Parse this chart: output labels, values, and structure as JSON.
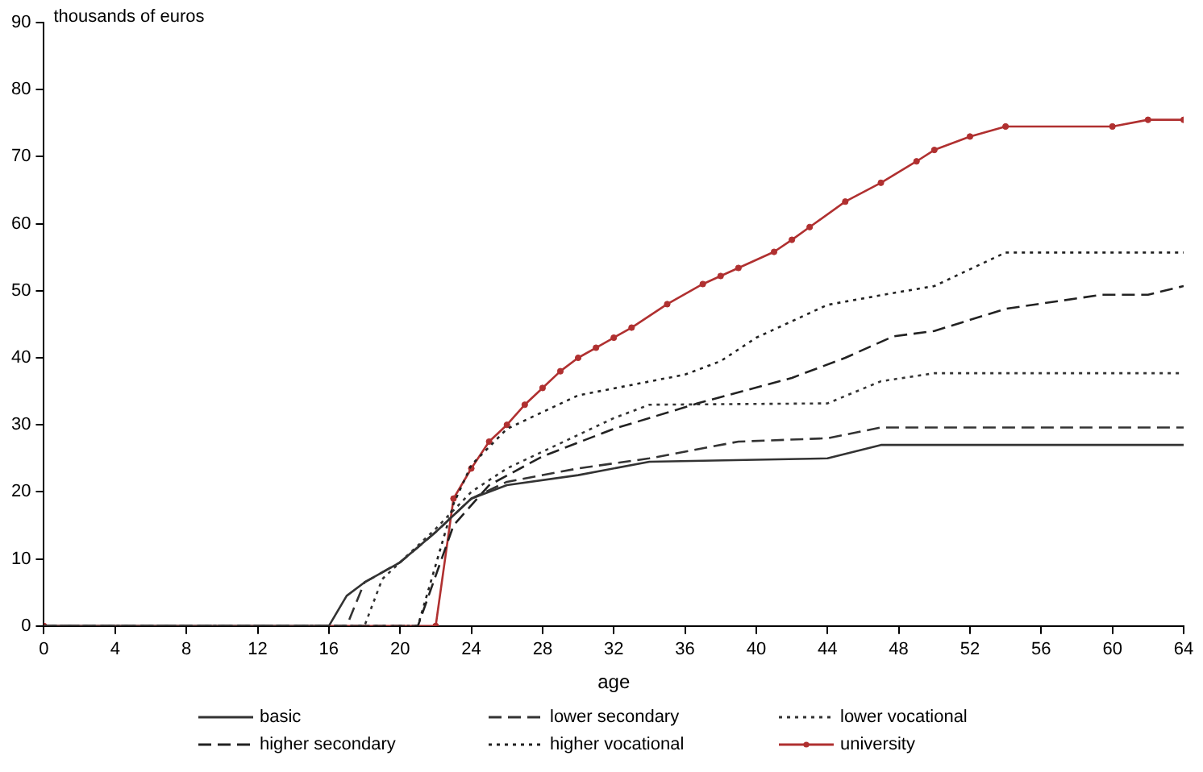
{
  "chart_data": {
    "type": "line",
    "ylabel": "thousands of euros",
    "xlabel": "age",
    "xlim": [
      0,
      64
    ],
    "xticks": [
      0,
      4,
      8,
      12,
      16,
      20,
      24,
      28,
      32,
      36,
      40,
      44,
      48,
      52,
      56,
      60,
      64
    ],
    "ylim": [
      0,
      90
    ],
    "yticks": [
      0,
      10,
      20,
      30,
      40,
      50,
      60,
      70,
      80,
      90
    ],
    "grid": false,
    "legend": "bottom",
    "marker": "none",
    "series": [
      {
        "name": "basic",
        "color": "#333333",
        "line_style": "solid",
        "x": [
          0,
          16,
          17,
          18,
          20,
          22,
          24,
          26,
          30,
          34,
          44,
          47,
          64
        ],
        "values": [
          0,
          0,
          4.5,
          6.5,
          9.5,
          14,
          19,
          21,
          22.5,
          24.5,
          25,
          27,
          27
        ]
      },
      {
        "name": "lower secondary",
        "color": "#333333",
        "line_style": "dashed",
        "x": [
          0,
          17,
          18,
          20,
          22,
          24,
          26,
          30,
          34,
          39,
          44,
          47,
          64
        ],
        "values": [
          0,
          0,
          6.5,
          9.5,
          14,
          19,
          21.5,
          23.5,
          25,
          27.5,
          28,
          29.6,
          29.6
        ]
      },
      {
        "name": "lower vocational",
        "color": "#333333",
        "line_style": "dotted",
        "x": [
          0,
          18,
          19,
          20,
          22,
          24,
          26,
          28,
          30,
          32,
          34,
          44,
          47,
          50,
          64
        ],
        "values": [
          0,
          0,
          7,
          9.5,
          14.5,
          20,
          23.5,
          26,
          28.5,
          31,
          33,
          33.2,
          36.5,
          37.7,
          37.7
        ]
      },
      {
        "name": "higher secondary",
        "color": "#222222",
        "line_style": "dashed",
        "x": [
          0,
          21,
          23,
          25,
          28,
          32,
          36.7,
          42,
          45,
          47.7,
          50,
          54,
          59.4,
          62,
          64
        ],
        "values": [
          0,
          0,
          15,
          21,
          25.3,
          29.4,
          33.2,
          37,
          40,
          43.2,
          44,
          47.3,
          49.4,
          49.4,
          50.7
        ]
      },
      {
        "name": "higher vocational",
        "color": "#222222",
        "line_style": "dotted",
        "x": [
          0,
          21,
          23,
          24,
          26,
          30,
          36,
          38,
          40,
          44,
          48,
          50,
          54,
          64
        ],
        "values": [
          0,
          0,
          18.2,
          24,
          29.4,
          34.4,
          37.5,
          39.5,
          43,
          47.9,
          49.8,
          50.7,
          55.7,
          55.7
        ]
      },
      {
        "name": "university",
        "color": "#b03030",
        "line_style": "solid",
        "marker": "circle",
        "x": [
          0,
          22,
          23,
          24,
          25,
          26,
          27,
          28,
          29,
          30,
          31,
          32,
          33,
          35,
          37,
          38,
          39,
          41,
          42,
          43,
          45,
          47,
          49,
          50,
          52,
          54,
          60,
          62,
          64
        ],
        "values": [
          0,
          0,
          19,
          23.5,
          27.5,
          30,
          33,
          35.5,
          38,
          40,
          41.5,
          43,
          44.5,
          48,
          51,
          52.2,
          53.4,
          55.8,
          57.6,
          59.5,
          63.3,
          66.1,
          69.3,
          71,
          73,
          74.5,
          74.5,
          75.5,
          75.5
        ]
      }
    ]
  }
}
